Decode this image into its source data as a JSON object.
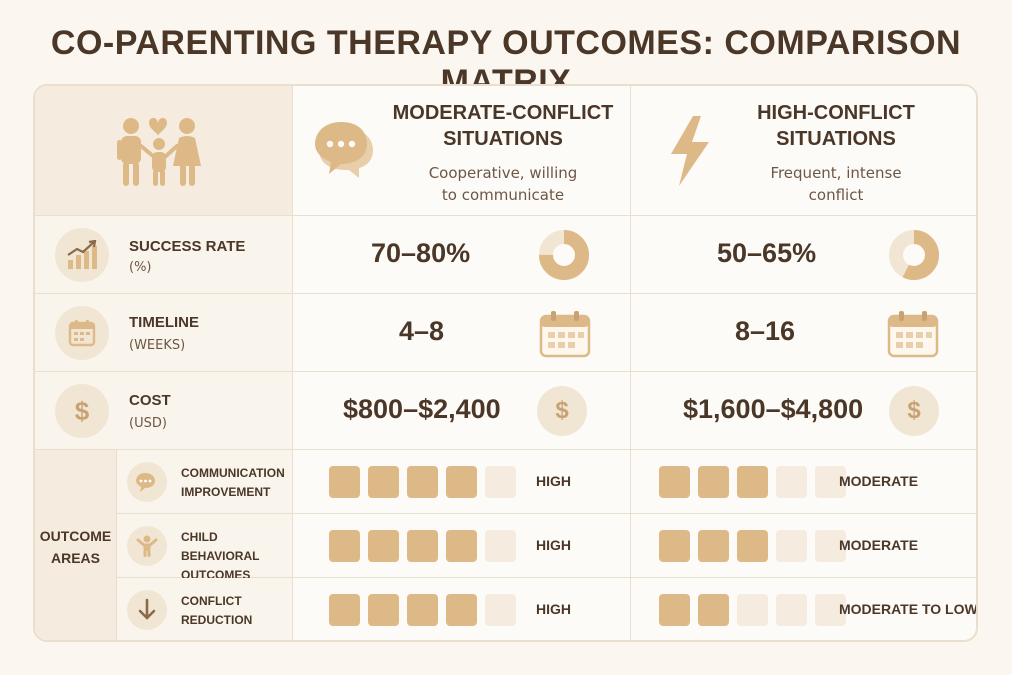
{
  "title": "CO-PARENTING THERAPY OUTCOMES: COMPARISON MATRIX",
  "icons": {
    "header": "family-heart-icon",
    "moderate": "chat-bubbles-icon",
    "high": "lightning-icon",
    "success": "growth-chart-icon",
    "timeline": "calendar-icon",
    "cost": "dollar-icon",
    "communication": "chat-icon",
    "child": "child-icon",
    "conflict": "arrow-down-icon"
  },
  "colors": {
    "accent": "#deb988",
    "light": "#f5ecdf",
    "text": "#4b3728"
  },
  "columns": [
    {
      "title": "MODERATE-CONFLICT SITUATIONS",
      "title_line1": "MODERATE-CONFLICT",
      "title_line2": "SITUATIONS",
      "subtitle_line1": "Cooperative, willing",
      "subtitle_line2": "to communicate"
    },
    {
      "title": "HIGH-CONFLICT SITUATIONS",
      "title_line1": "HIGH-CONFLICT",
      "title_line2": "SITUATIONS",
      "subtitle_line1": "Frequent, intense",
      "subtitle_line2": "conflict"
    }
  ],
  "metrics": {
    "success": {
      "label": "SUCCESS RATE",
      "unit": "(%)",
      "moderate": "70–80%",
      "high": "50–65%",
      "moderate_donut_fraction": 0.75,
      "high_donut_fraction": 0.575
    },
    "timeline": {
      "label": "TIMELINE",
      "unit": "(WEEKS)",
      "moderate": "4–8",
      "high": "8–16"
    },
    "cost": {
      "label": "COST",
      "unit": "(USD)",
      "moderate": "$800–$2,400",
      "high": "$1,600–$4,800"
    }
  },
  "outcomes": {
    "label_line1": "OUTCOME",
    "label_line2": "AREAS",
    "rows": [
      {
        "label_line1": "COMMUNICATION",
        "label_line2": "IMPROVEMENT",
        "moderate_level": "HIGH",
        "moderate_filled": 4,
        "high_level": "MODERATE",
        "high_filled": 3,
        "total": 5
      },
      {
        "label_line1": "CHILD BEHAVIORAL",
        "label_line2": "OUTCOMES",
        "moderate_level": "HIGH",
        "moderate_filled": 4,
        "high_level": "MODERATE",
        "high_filled": 3,
        "total": 5
      },
      {
        "label_line1": "CONFLICT",
        "label_line2": "REDUCTION",
        "moderate_level": "HIGH",
        "moderate_filled": 4,
        "high_level": "MODERATE TO LOW",
        "high_filled": 2,
        "total": 5
      }
    ]
  }
}
